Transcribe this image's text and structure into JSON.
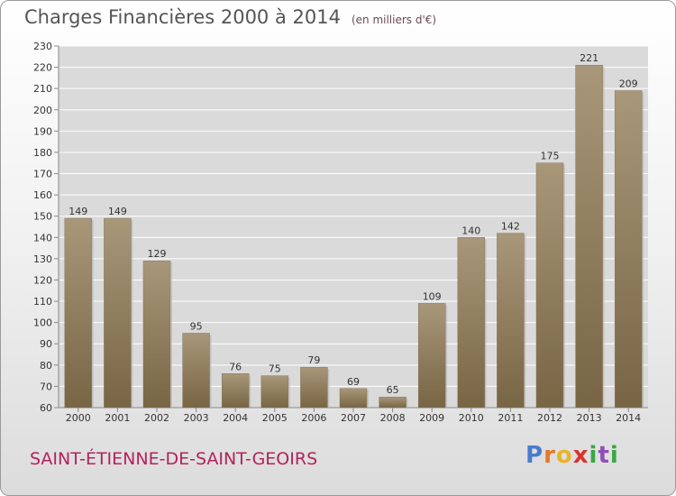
{
  "header": {
    "title": "Charges Financières 2000 à 2014",
    "unit": "(en milliers d'€)"
  },
  "footer": {
    "commune": "SAINT-ÉTIENNE-DE-SAINT-GEOIRS",
    "logo": "Proxiti"
  },
  "colors": {
    "bar_top": "#a89779",
    "bar_bottom": "#776544",
    "grid": "#ffffff",
    "plot_background": "#dadada",
    "logo": [
      "#4a7cc9",
      "#e8762a",
      "#e8b42a",
      "#d9342b",
      "#3aa845",
      "#8f4fb8",
      "#3aa845"
    ]
  },
  "chart_data": {
    "type": "bar",
    "title": "Charges Financières 2000 à 2014",
    "subtitle": "(en milliers d'€)",
    "categories": [
      "2000",
      "2001",
      "2002",
      "2003",
      "2004",
      "2005",
      "2006",
      "2007",
      "2008",
      "2009",
      "2010",
      "2011",
      "2012",
      "2013",
      "2014"
    ],
    "values": [
      149,
      149,
      129,
      95,
      76,
      75,
      79,
      69,
      65,
      109,
      140,
      142,
      175,
      221,
      209
    ],
    "ylim": [
      60,
      230
    ],
    "yticks": [
      60,
      70,
      80,
      90,
      100,
      110,
      120,
      130,
      140,
      150,
      160,
      170,
      180,
      190,
      200,
      210,
      220,
      230
    ],
    "grid": true,
    "data_labels": true
  }
}
